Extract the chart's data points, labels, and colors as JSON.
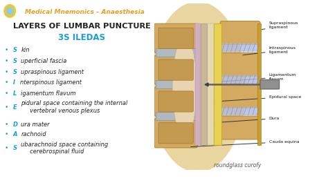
{
  "bg_color": "#ffffff",
  "header_color": "#e8a020",
  "title_color": "#222222",
  "mnemonic_color": "#1a9cd8",
  "bullet_color": "#1a9cd8",
  "header_text": "Medical Mnemonics – Anaesthesia",
  "title_text": "LAYERS OF LUMBAR PUNCTURE",
  "mnemonic_text": "3S ILEDAS",
  "bullet_first_letters": [
    "S",
    "S",
    "S",
    "I",
    "L",
    "E",
    "D",
    "A",
    "S"
  ],
  "bullet_rest": [
    "kin",
    "uperficial fascia",
    "upraspinous ligament",
    "nterspinous ligament",
    "igamentum flavum",
    "pidural space containing the internal\n     vertebral venous plexus",
    "ura mater",
    "rachnoid",
    "ubarachnoid space containing\n     cerebrospinal fluid"
  ],
  "watermark": "roundglass curofy",
  "icon_color": "#e8c840"
}
